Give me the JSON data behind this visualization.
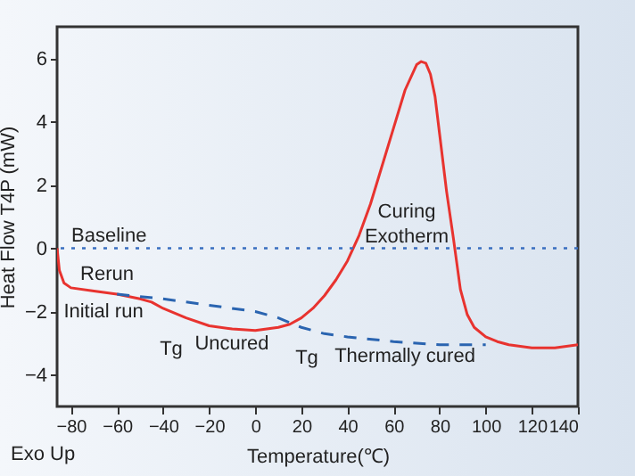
{
  "chart_data": {
    "type": "line",
    "xlabel": "Temperature(℃)",
    "ylabel": "Heat Flow T4P (mW)",
    "xlim": [
      -86,
      140
    ],
    "ylim": [
      -5,
      7
    ],
    "xticks": [
      -80,
      -60,
      -40,
      -20,
      0,
      20,
      40,
      60,
      80,
      100,
      120,
      140
    ],
    "yticks": [
      -4,
      -2,
      0,
      2,
      4,
      6
    ],
    "grid": false,
    "marker": "none",
    "series": [
      {
        "color": "#e8332f",
        "line_style": "solid",
        "x": [
          -86,
          -85,
          -83,
          -80,
          -70,
          -60,
          -50,
          -45,
          -40,
          -30,
          -20,
          -10,
          0,
          10,
          15,
          20,
          25,
          30,
          35,
          40,
          45,
          50,
          55,
          60,
          65,
          70,
          72,
          74,
          76,
          78,
          80,
          83,
          86,
          89,
          92,
          95,
          100,
          105,
          110,
          120,
          130,
          140
        ],
        "values": [
          0,
          -0.7,
          -1.1,
          -1.25,
          -1.35,
          -1.45,
          -1.6,
          -1.7,
          -1.9,
          -2.2,
          -2.45,
          -2.55,
          -2.6,
          -2.5,
          -2.4,
          -2.2,
          -1.9,
          -1.5,
          -1.0,
          -0.4,
          0.4,
          1.4,
          2.6,
          3.8,
          5.0,
          5.8,
          5.9,
          5.85,
          5.5,
          4.8,
          3.6,
          1.8,
          0.3,
          -1.3,
          -2.1,
          -2.5,
          -2.8,
          -2.95,
          -3.05,
          -3.15,
          -3.15,
          -3.05
        ]
      },
      {
        "color": "#2a64b0",
        "line_style": "dashed",
        "x": [
          -60,
          -40,
          -20,
          0,
          10,
          20,
          30,
          40,
          60,
          80,
          100
        ],
        "values": [
          -1.45,
          -1.6,
          -1.8,
          -2.0,
          -2.2,
          -2.5,
          -2.7,
          -2.8,
          -2.95,
          -3.05,
          -3.05
        ]
      }
    ],
    "ref_lines": [
      {
        "axis": "y",
        "value": 0,
        "label": "Baseline",
        "color": "#3a6fc0",
        "line_style": "dotted"
      }
    ],
    "annotations": [
      "Rerun",
      "Initial run",
      "Tg",
      "Uncured",
      "Tg",
      "Thermally cured",
      "Curing\nExotherm",
      "Exo Up"
    ]
  }
}
